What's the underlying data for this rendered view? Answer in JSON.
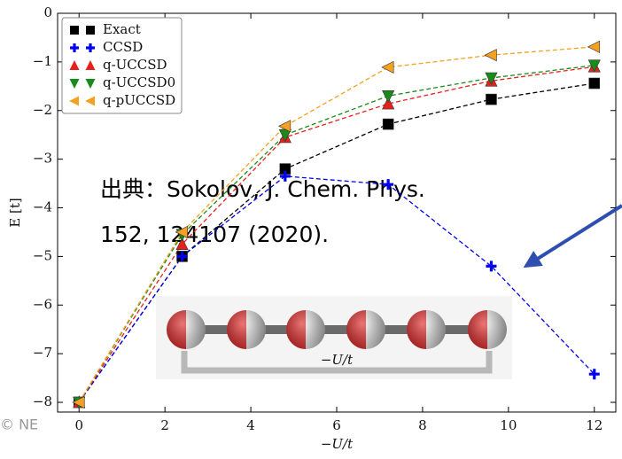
{
  "chart_data": {
    "type": "line",
    "xlabel": "−U/t",
    "ylabel": "E [t]",
    "x": [
      0,
      2.4,
      4.8,
      7.2,
      9.6,
      12
    ],
    "series": [
      {
        "name": "Exact",
        "color": "#000000",
        "marker": "square",
        "values": [
          -8,
          -5.0,
          -3.2,
          -2.28,
          -1.77,
          -1.44
        ]
      },
      {
        "name": "CCSD",
        "color": "#0000ee",
        "marker": "plus",
        "values": [
          -8,
          -5.0,
          -3.35,
          -3.52,
          -5.2,
          -7.42
        ]
      },
      {
        "name": "q-UCCSD",
        "color": "#e8201c",
        "marker": "triangle-up",
        "values": [
          -8,
          -4.75,
          -2.55,
          -1.86,
          -1.39,
          -1.1
        ]
      },
      {
        "name": "q-UCCSD0",
        "color": "#1a8a1a",
        "marker": "triangle-down",
        "values": [
          -8,
          -4.55,
          -2.5,
          -1.7,
          -1.33,
          -1.07
        ]
      },
      {
        "name": "q-pUCCSD",
        "color": "#f4a020",
        "marker": "triangle-left",
        "values": [
          -8,
          -4.5,
          -2.32,
          -1.11,
          -0.86,
          -0.69
        ]
      }
    ],
    "xlim": [
      -0.5,
      12.5
    ],
    "ylim": [
      -8.2,
      0
    ],
    "xticks": [
      0,
      2,
      4,
      6,
      8,
      10,
      12
    ],
    "yticks": [
      0,
      {
        "value": -1,
        "label": "−1"
      },
      {
        "value": -2,
        "label": "−2"
      },
      {
        "value": -3,
        "label": "−3"
      },
      {
        "value": -4,
        "label": "−4"
      },
      {
        "value": -5,
        "label": "−5"
      },
      {
        "value": -6,
        "label": "−6"
      },
      {
        "value": -7,
        "label": "−7"
      },
      {
        "value": -8,
        "label": "−8"
      }
    ],
    "legend": "upper left",
    "citation": [
      "出典：Sokolov, J. Chem. Phys.",
      "152, 124107 (2020)."
    ],
    "inset_label": "−U/t",
    "watermark": "© NE"
  }
}
